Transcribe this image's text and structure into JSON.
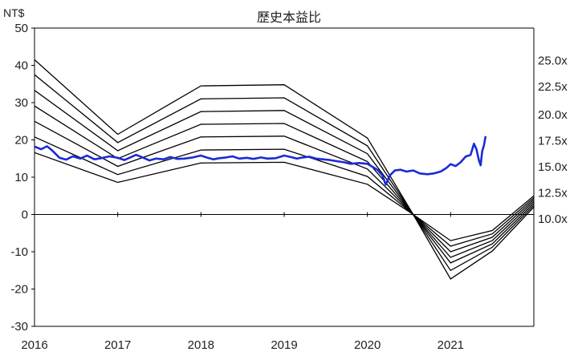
{
  "chart_data": {
    "type": "line",
    "title": "歷史本益比",
    "unit_label": "NT$",
    "ylim": [
      -30,
      50
    ],
    "yticks": [
      -30,
      -20,
      -10,
      0,
      10,
      20,
      30,
      40,
      50
    ],
    "xlim": [
      2016.0,
      2022.0
    ],
    "xticks": [
      {
        "x": 2016.0,
        "label": "2016"
      },
      {
        "x": 2017.0,
        "label": "2017"
      },
      {
        "x": 2018.0,
        "label": "2018"
      },
      {
        "x": 2019.0,
        "label": "2019"
      },
      {
        "x": 2020.0,
        "label": "2020"
      },
      {
        "x": 2021.0,
        "label": "2021"
      }
    ],
    "right_axis_labels": [
      {
        "label": "25.0x",
        "y": 41.5
      },
      {
        "label": "22.5x",
        "y": 34.5
      },
      {
        "label": "20.0x",
        "y": 27.0
      },
      {
        "label": "17.5x",
        "y": 20.0
      },
      {
        "label": "15.0x",
        "y": 13.0
      },
      {
        "label": "12.5x",
        "y": 6.0
      },
      {
        "label": "10.0x",
        "y": -1.0
      }
    ],
    "bands": [
      {
        "multiple": "25.0x",
        "points": [
          [
            2016.0,
            41.5
          ],
          [
            2017.0,
            21.5
          ],
          [
            2018.0,
            34.5
          ],
          [
            2019.0,
            34.8
          ],
          [
            2020.0,
            20.5
          ],
          [
            2020.55,
            0.0
          ],
          [
            2021.0,
            -7.0
          ],
          [
            2021.5,
            -4.3
          ],
          [
            2022.0,
            5.0
          ]
        ]
      },
      {
        "multiple": "22.5x",
        "points": [
          [
            2016.0,
            37.5
          ],
          [
            2017.0,
            19.3
          ],
          [
            2018.0,
            31.0
          ],
          [
            2019.0,
            31.3
          ],
          [
            2020.0,
            18.4
          ],
          [
            2020.55,
            0.0
          ],
          [
            2021.0,
            -8.5
          ],
          [
            2021.5,
            -5.2
          ],
          [
            2022.0,
            4.5
          ]
        ]
      },
      {
        "multiple": "20.0x",
        "points": [
          [
            2016.0,
            33.3
          ],
          [
            2017.0,
            17.1
          ],
          [
            2018.0,
            27.6
          ],
          [
            2019.0,
            27.9
          ],
          [
            2020.0,
            16.3
          ],
          [
            2020.55,
            0.0
          ],
          [
            2021.0,
            -10.0
          ],
          [
            2021.5,
            -6.1
          ],
          [
            2022.0,
            4.0
          ]
        ]
      },
      {
        "multiple": "17.5x",
        "points": [
          [
            2016.0,
            29.1
          ],
          [
            2017.0,
            15.0
          ],
          [
            2018.0,
            24.2
          ],
          [
            2019.0,
            24.4
          ],
          [
            2020.0,
            14.2
          ],
          [
            2020.55,
            0.0
          ],
          [
            2021.0,
            -11.5
          ],
          [
            2021.5,
            -7.0
          ],
          [
            2022.0,
            3.5
          ]
        ]
      },
      {
        "multiple": "15.0x",
        "points": [
          [
            2016.0,
            25.0
          ],
          [
            2017.0,
            12.9
          ],
          [
            2018.0,
            20.8
          ],
          [
            2019.0,
            21.0
          ],
          [
            2020.0,
            12.2
          ],
          [
            2020.55,
            0.0
          ],
          [
            2021.0,
            -13.0
          ],
          [
            2021.5,
            -7.9
          ],
          [
            2022.0,
            3.0
          ]
        ]
      },
      {
        "multiple": "12.5x",
        "points": [
          [
            2016.0,
            20.8
          ],
          [
            2017.0,
            10.7
          ],
          [
            2018.0,
            17.3
          ],
          [
            2019.0,
            17.5
          ],
          [
            2020.0,
            10.2
          ],
          [
            2020.55,
            0.0
          ],
          [
            2021.0,
            -15.0
          ],
          [
            2021.5,
            -8.8
          ],
          [
            2022.0,
            2.5
          ]
        ]
      },
      {
        "multiple": "10.0x",
        "points": [
          [
            2016.0,
            16.6
          ],
          [
            2017.0,
            8.6
          ],
          [
            2018.0,
            13.8
          ],
          [
            2019.0,
            14.0
          ],
          [
            2020.0,
            8.1
          ],
          [
            2020.55,
            0.0
          ],
          [
            2021.0,
            -17.3
          ],
          [
            2021.5,
            -9.8
          ],
          [
            2022.0,
            2.0
          ]
        ]
      }
    ],
    "price_series": {
      "name": "",
      "color": "#1a2bd6",
      "points": [
        [
          2016.0,
          18.2
        ],
        [
          2016.08,
          17.5
        ],
        [
          2016.15,
          18.3
        ],
        [
          2016.22,
          17.0
        ],
        [
          2016.3,
          15.2
        ],
        [
          2016.38,
          14.7
        ],
        [
          2016.46,
          15.6
        ],
        [
          2016.55,
          15.0
        ],
        [
          2016.63,
          15.8
        ],
        [
          2016.72,
          14.8
        ],
        [
          2016.8,
          15.1
        ],
        [
          2016.9,
          15.6
        ],
        [
          2017.0,
          15.2
        ],
        [
          2017.08,
          14.6
        ],
        [
          2017.15,
          15.3
        ],
        [
          2017.22,
          16.0
        ],
        [
          2017.3,
          15.3
        ],
        [
          2017.38,
          14.5
        ],
        [
          2017.46,
          15.0
        ],
        [
          2017.55,
          14.8
        ],
        [
          2017.63,
          15.4
        ],
        [
          2017.72,
          14.9
        ],
        [
          2017.8,
          15.0
        ],
        [
          2017.9,
          15.3
        ],
        [
          2018.0,
          15.8
        ],
        [
          2018.08,
          15.2
        ],
        [
          2018.15,
          14.8
        ],
        [
          2018.22,
          15.1
        ],
        [
          2018.3,
          15.3
        ],
        [
          2018.38,
          15.6
        ],
        [
          2018.46,
          15.0
        ],
        [
          2018.55,
          15.2
        ],
        [
          2018.63,
          14.9
        ],
        [
          2018.72,
          15.3
        ],
        [
          2018.8,
          15.0
        ],
        [
          2018.9,
          15.1
        ],
        [
          2019.0,
          15.8
        ],
        [
          2019.08,
          15.4
        ],
        [
          2019.15,
          15.0
        ],
        [
          2019.22,
          15.3
        ],
        [
          2019.3,
          15.5
        ],
        [
          2019.38,
          15.0
        ],
        [
          2019.46,
          14.8
        ],
        [
          2019.55,
          14.6
        ],
        [
          2019.63,
          14.3
        ],
        [
          2019.72,
          14.0
        ],
        [
          2019.8,
          13.6
        ],
        [
          2019.9,
          13.8
        ],
        [
          2020.0,
          13.6
        ],
        [
          2020.06,
          12.8
        ],
        [
          2020.12,
          12.0
        ],
        [
          2020.18,
          10.5
        ],
        [
          2020.22,
          8.0
        ],
        [
          2020.27,
          10.5
        ],
        [
          2020.33,
          11.8
        ],
        [
          2020.4,
          12.0
        ],
        [
          2020.47,
          11.5
        ],
        [
          2020.55,
          11.8
        ],
        [
          2020.63,
          11.0
        ],
        [
          2020.72,
          10.8
        ],
        [
          2020.8,
          11.0
        ],
        [
          2020.88,
          11.5
        ],
        [
          2020.95,
          12.5
        ],
        [
          2021.0,
          13.5
        ],
        [
          2021.06,
          13.0
        ],
        [
          2021.12,
          14.0
        ],
        [
          2021.18,
          15.5
        ],
        [
          2021.24,
          16.0
        ],
        [
          2021.28,
          19.0
        ],
        [
          2021.31,
          17.5
        ],
        [
          2021.34,
          14.5
        ],
        [
          2021.36,
          13.2
        ],
        [
          2021.38,
          17.0
        ],
        [
          2021.4,
          18.5
        ],
        [
          2021.42,
          21.0
        ]
      ]
    }
  }
}
